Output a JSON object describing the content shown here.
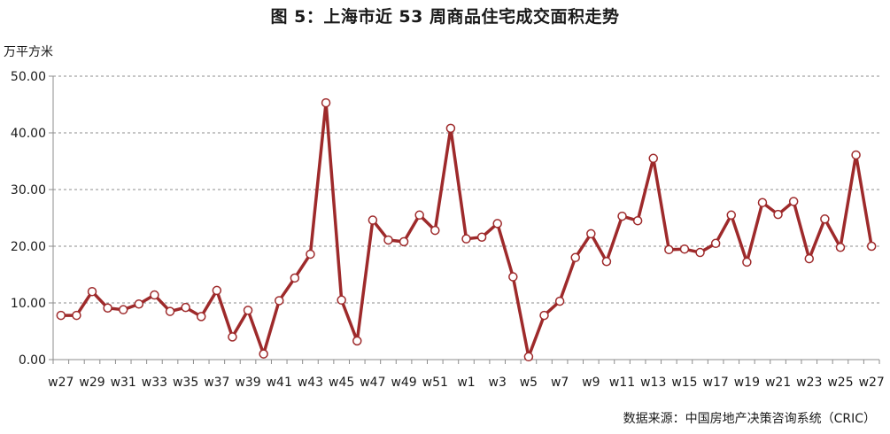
{
  "title": "图 5：上海市近 53 周商品住宅成交面积走势",
  "unit": "万平方米",
  "source": "数据来源：中国房地产决策咨询系统（CRIC）",
  "colors": {
    "line": "#9e2a2b",
    "marker_fill": "#ffffff",
    "grid": "#8c8c8c",
    "axis": "#8c8c8c"
  },
  "chart_data": {
    "type": "line",
    "title": "图 5：上海市近 53 周商品住宅成交面积走势",
    "ylabel": "万平方米",
    "xlabel": "",
    "ylim": [
      0,
      50
    ],
    "yticks": [
      "0.00",
      "10.00",
      "20.00",
      "30.00",
      "40.00",
      "50.00"
    ],
    "grid": true,
    "legend": "none",
    "x": [
      "w27",
      "w28",
      "w29",
      "w30",
      "w31",
      "w32",
      "w33",
      "w34",
      "w35",
      "w36",
      "w37",
      "w38",
      "w39",
      "w40",
      "w41",
      "w42",
      "w43",
      "w44",
      "w45",
      "w46",
      "w47",
      "w48",
      "w49",
      "w50",
      "w51",
      "w52",
      "w1",
      "w2",
      "w3",
      "w4",
      "w5",
      "w6",
      "w7",
      "w8",
      "w9",
      "w10",
      "w11",
      "w12",
      "w13",
      "w14",
      "w15",
      "w16",
      "w17",
      "w18",
      "w19",
      "w20",
      "w21",
      "w22",
      "w23",
      "w24",
      "w25",
      "w26",
      "w27"
    ],
    "xtick_labels": [
      "w27",
      "w29",
      "w31",
      "w33",
      "w35",
      "w37",
      "w39",
      "w41",
      "w43",
      "w45",
      "w47",
      "w49",
      "w51",
      "w1",
      "w3",
      "w5",
      "w7",
      "w9",
      "w11",
      "w13",
      "w15",
      "w17",
      "w19",
      "w21",
      "w23",
      "w25",
      "w27"
    ],
    "series": [
      {
        "values": [
          7.8,
          7.8,
          12.0,
          9.1,
          8.8,
          9.8,
          11.4,
          8.5,
          9.2,
          7.6,
          12.2,
          4.0,
          8.7,
          1.0,
          10.4,
          14.4,
          18.6,
          45.3,
          10.5,
          3.3,
          24.6,
          21.1,
          20.8,
          25.5,
          22.8,
          40.8,
          21.3,
          21.6,
          24.0,
          14.6,
          0.5,
          7.8,
          10.3,
          18.0,
          22.2,
          17.3,
          25.3,
          24.5,
          35.5,
          19.4,
          19.5,
          18.9,
          20.5,
          25.5,
          17.2,
          27.7,
          25.6,
          27.9,
          17.8,
          24.8,
          19.8,
          36.1,
          20.0
        ]
      }
    ]
  }
}
